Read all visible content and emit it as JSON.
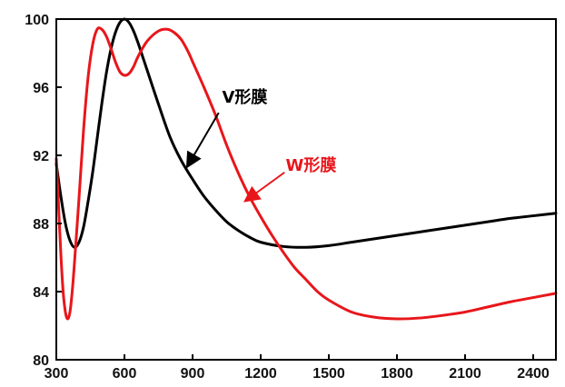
{
  "chart_data": {
    "type": "line",
    "title": "",
    "xlabel": "",
    "ylabel": "",
    "xlim": [
      300,
      2500
    ],
    "ylim": [
      80,
      100
    ],
    "xticks": [
      300,
      600,
      900,
      1200,
      1500,
      1800,
      2100,
      2400
    ],
    "yticks": [
      80,
      84,
      88,
      92,
      96,
      100
    ],
    "grid": false,
    "legend": "none",
    "series": [
      {
        "color": "#000000",
        "points": [
          [
            300,
            91.5
          ],
          [
            320,
            89.6
          ],
          [
            340,
            88.0
          ],
          [
            360,
            87.0
          ],
          [
            380,
            86.6
          ],
          [
            400,
            86.9
          ],
          [
            420,
            87.8
          ],
          [
            440,
            89.3
          ],
          [
            460,
            91.0
          ],
          [
            480,
            93.0
          ],
          [
            500,
            95.0
          ],
          [
            520,
            96.8
          ],
          [
            540,
            98.2
          ],
          [
            560,
            99.2
          ],
          [
            580,
            99.8
          ],
          [
            600,
            100.0
          ],
          [
            620,
            99.8
          ],
          [
            640,
            99.3
          ],
          [
            660,
            98.6
          ],
          [
            680,
            97.8
          ],
          [
            700,
            97.0
          ],
          [
            750,
            95.0
          ],
          [
            800,
            93.1
          ],
          [
            850,
            91.7
          ],
          [
            900,
            90.6
          ],
          [
            950,
            89.6
          ],
          [
            1000,
            88.8
          ],
          [
            1050,
            88.1
          ],
          [
            1100,
            87.6
          ],
          [
            1150,
            87.2
          ],
          [
            1200,
            86.9
          ],
          [
            1300,
            86.65
          ],
          [
            1400,
            86.6
          ],
          [
            1500,
            86.7
          ],
          [
            1600,
            86.9
          ],
          [
            1700,
            87.1
          ],
          [
            1800,
            87.3
          ],
          [
            1900,
            87.5
          ],
          [
            2000,
            87.7
          ],
          [
            2100,
            87.9
          ],
          [
            2200,
            88.1
          ],
          [
            2300,
            88.3
          ],
          [
            2400,
            88.45
          ],
          [
            2500,
            88.6
          ]
        ]
      },
      {
        "color": "#e8161b",
        "points": [
          [
            300,
            91.8
          ],
          [
            310,
            89.0
          ],
          [
            320,
            86.2
          ],
          [
            330,
            84.0
          ],
          [
            340,
            82.8
          ],
          [
            350,
            82.4
          ],
          [
            360,
            82.8
          ],
          [
            370,
            84.0
          ],
          [
            380,
            85.7
          ],
          [
            400,
            89.5
          ],
          [
            420,
            93.5
          ],
          [
            440,
            96.6
          ],
          [
            460,
            98.5
          ],
          [
            480,
            99.4
          ],
          [
            500,
            99.4
          ],
          [
            520,
            99.0
          ],
          [
            540,
            98.3
          ],
          [
            560,
            97.5
          ],
          [
            580,
            96.9
          ],
          [
            600,
            96.7
          ],
          [
            620,
            96.8
          ],
          [
            640,
            97.2
          ],
          [
            660,
            97.8
          ],
          [
            700,
            98.7
          ],
          [
            750,
            99.3
          ],
          [
            790,
            99.4
          ],
          [
            820,
            99.2
          ],
          [
            850,
            98.8
          ],
          [
            880,
            98.1
          ],
          [
            900,
            97.5
          ],
          [
            950,
            96.0
          ],
          [
            1000,
            94.4
          ],
          [
            1050,
            92.6
          ],
          [
            1100,
            91.0
          ],
          [
            1150,
            89.6
          ],
          [
            1200,
            88.4
          ],
          [
            1250,
            87.3
          ],
          [
            1300,
            86.3
          ],
          [
            1350,
            85.4
          ],
          [
            1400,
            84.7
          ],
          [
            1450,
            84.0
          ],
          [
            1500,
            83.5
          ],
          [
            1600,
            82.8
          ],
          [
            1700,
            82.5
          ],
          [
            1800,
            82.4
          ],
          [
            1900,
            82.45
          ],
          [
            2000,
            82.6
          ],
          [
            2100,
            82.8
          ],
          [
            2200,
            83.1
          ],
          [
            2300,
            83.4
          ],
          [
            2400,
            83.65
          ],
          [
            2500,
            83.9
          ]
        ]
      }
    ],
    "annotations": [
      {
        "text": "V形膜",
        "color": "#000000",
        "text_at": [
          1030,
          95.1
        ],
        "arrow_from": [
          1015,
          94.5
        ],
        "arrow_to": [
          875,
          91.3
        ]
      },
      {
        "text": "W形膜",
        "color": "#e8161b",
        "text_at": [
          1310,
          91.1
        ],
        "arrow_from": [
          1305,
          91.0
        ],
        "arrow_to": [
          1130,
          89.3
        ]
      }
    ]
  }
}
